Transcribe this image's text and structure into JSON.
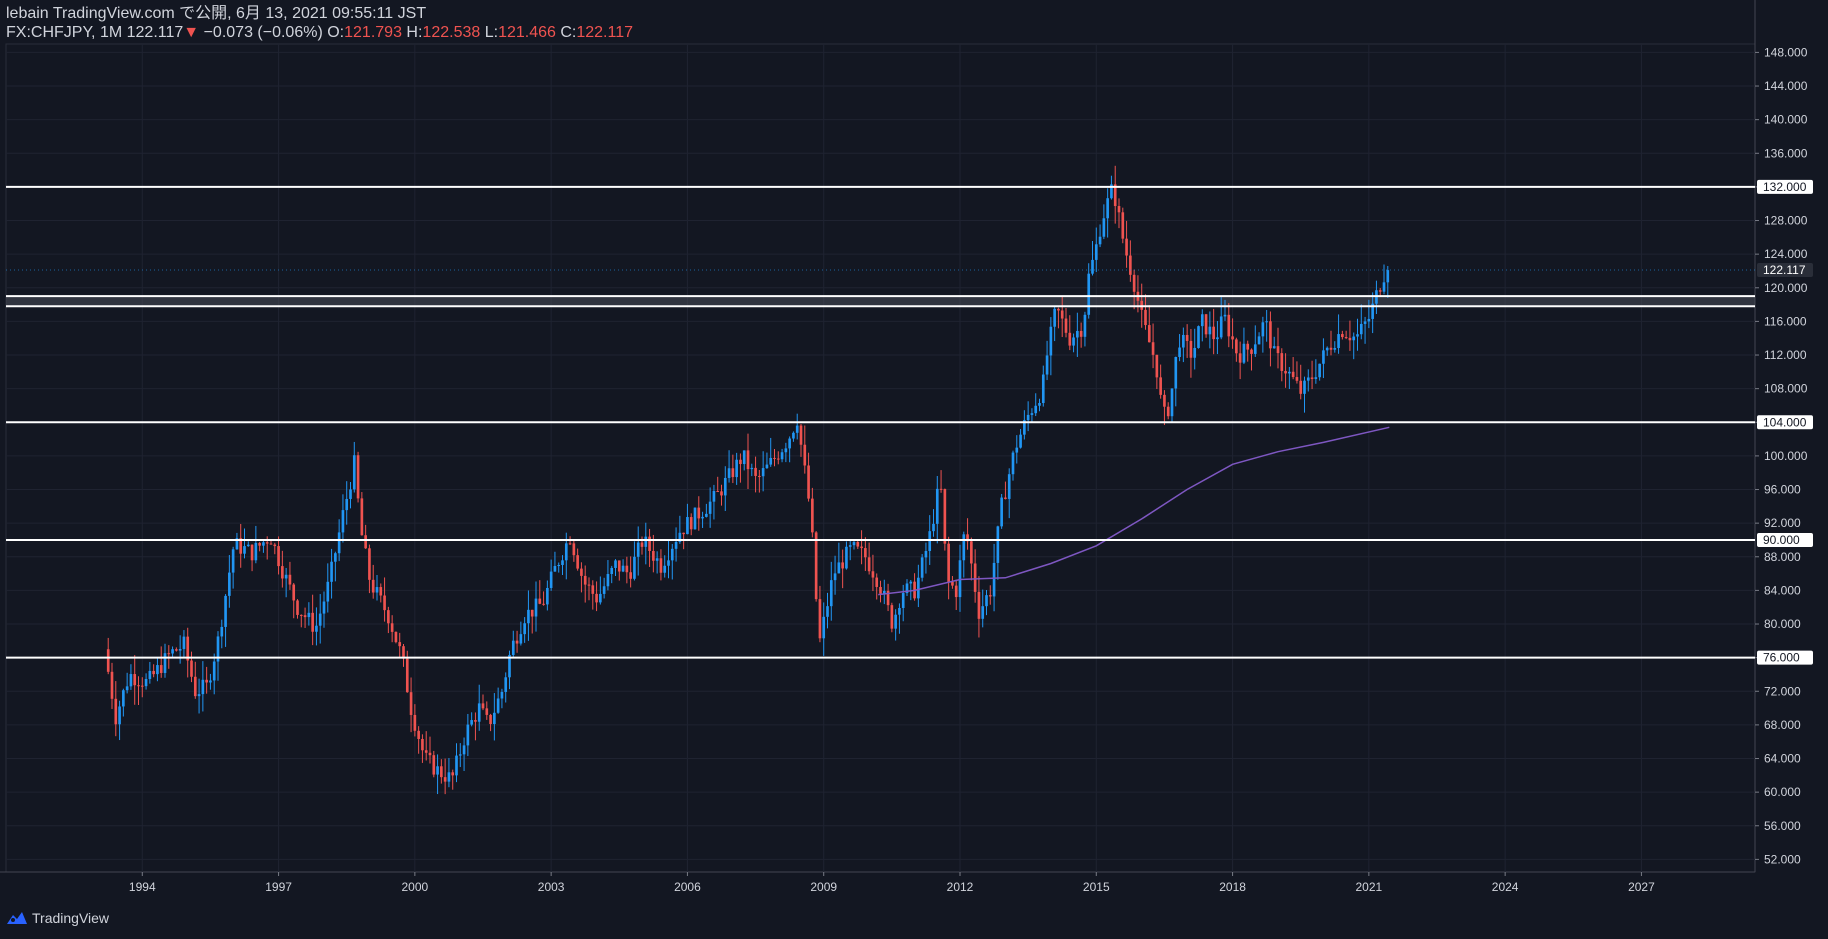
{
  "header": {
    "author_line": "lebain TradingView.com で公開, 6月 13, 2021 09:55:11 JST",
    "symbol": "FX:CHFJPY, 1M",
    "last": "122.117",
    "change_arrow": "▼",
    "change": "−0.073 (−0.06%)",
    "o_label": "O:",
    "o_value": "121.793",
    "h_label": "H:",
    "h_value": "122.538",
    "l_label": "L:",
    "l_value": "121.466",
    "c_label": "C:",
    "c_value": "122.117"
  },
  "footer": {
    "brand": "TradingView"
  },
  "colors": {
    "background": "#131722",
    "up": "#2196f3",
    "down": "#ef5350",
    "ma": "#7e57c2",
    "level": "#ffffff",
    "grid": "#1f2331",
    "axis_text": "#d1d4dc"
  },
  "chart_data": {
    "type": "candlestick",
    "title": "FX:CHFJPY, 1M",
    "ylim": [
      50.5,
      149
    ],
    "y_ticks": [
      "52.000",
      "56.000",
      "60.000",
      "64.000",
      "68.000",
      "72.000",
      "76.000",
      "80.000",
      "84.000",
      "88.000",
      "92.000",
      "96.000",
      "100.000",
      "104.000",
      "108.000",
      "112.000",
      "116.000",
      "120.000",
      "124.000",
      "128.000",
      "132.000",
      "136.000",
      "140.000",
      "144.000",
      "148.000"
    ],
    "x_ticks": [
      "1994",
      "1997",
      "2000",
      "2003",
      "2006",
      "2009",
      "2012",
      "2015",
      "2018",
      "2021",
      "2024",
      "2027"
    ],
    "xlim": [
      1991.0,
      2029.5
    ],
    "last_price_label": "122.117",
    "horizontal_levels": [
      {
        "value": 132,
        "label": "132.000"
      },
      {
        "value": 119,
        "label": ""
      },
      {
        "value": 117.8,
        "label": ""
      },
      {
        "value": 104,
        "label": "104.000"
      },
      {
        "value": 90,
        "label": "90.000"
      },
      {
        "value": 76,
        "label": "76.000"
      }
    ],
    "zone": [
      117.8,
      119
    ],
    "price_path": [
      [
        1993.25,
        77
      ],
      [
        1993.5,
        69
      ],
      [
        1993.8,
        74
      ],
      [
        1994.2,
        73
      ],
      [
        1994.7,
        76.5
      ],
      [
        1995.0,
        77.5
      ],
      [
        1995.25,
        72
      ],
      [
        1995.5,
        72.5
      ],
      [
        1995.75,
        78
      ],
      [
        1996.1,
        89.5
      ],
      [
        1996.5,
        88.5
      ],
      [
        1996.9,
        90.5
      ],
      [
        1997.2,
        86
      ],
      [
        1997.5,
        82
      ],
      [
        1997.9,
        79.5
      ],
      [
        1998.2,
        85
      ],
      [
        1998.5,
        93
      ],
      [
        1998.75,
        99
      ],
      [
        1998.9,
        91
      ],
      [
        1999.1,
        85
      ],
      [
        1999.5,
        81
      ],
      [
        1999.8,
        76
      ],
      [
        2000.0,
        70
      ],
      [
        2000.3,
        64
      ],
      [
        2000.6,
        62.5
      ],
      [
        2000.9,
        61.5
      ],
      [
        2001.2,
        67
      ],
      [
        2001.5,
        70
      ],
      [
        2001.7,
        68
      ],
      [
        2002.0,
        72
      ],
      [
        2002.2,
        77
      ],
      [
        2002.5,
        81
      ],
      [
        2002.9,
        82.5
      ],
      [
        2003.2,
        87
      ],
      [
        2003.5,
        90.5
      ],
      [
        2003.8,
        85
      ],
      [
        2004.1,
        83
      ],
      [
        2004.5,
        87
      ],
      [
        2004.8,
        86
      ],
      [
        2005.1,
        90
      ],
      [
        2005.5,
        87
      ],
      [
        2005.9,
        91
      ],
      [
        2006.3,
        93
      ],
      [
        2006.7,
        95
      ],
      [
        2007.0,
        97.5
      ],
      [
        2007.3,
        100
      ],
      [
        2007.6,
        97
      ],
      [
        2007.9,
        99
      ],
      [
        2008.3,
        102
      ],
      [
        2008.5,
        104.5
      ],
      [
        2008.8,
        93
      ],
      [
        2008.9,
        84
      ],
      [
        2009.0,
        78
      ],
      [
        2009.3,
        86
      ],
      [
        2009.7,
        89
      ],
      [
        2010.0,
        88
      ],
      [
        2010.3,
        85
      ],
      [
        2010.6,
        80
      ],
      [
        2010.8,
        84
      ],
      [
        2011.1,
        84
      ],
      [
        2011.4,
        90
      ],
      [
        2011.65,
        97
      ],
      [
        2011.8,
        85
      ],
      [
        2012.0,
        84
      ],
      [
        2012.2,
        91.5
      ],
      [
        2012.5,
        81.5
      ],
      [
        2012.75,
        84
      ],
      [
        2013.0,
        94
      ],
      [
        2013.3,
        101
      ],
      [
        2013.6,
        105
      ],
      [
        2013.9,
        108
      ],
      [
        2014.0,
        112
      ],
      [
        2014.2,
        117.5
      ],
      [
        2014.5,
        114
      ],
      [
        2014.8,
        115.5
      ],
      [
        2014.9,
        121
      ],
      [
        2015.05,
        124
      ],
      [
        2015.2,
        128
      ],
      [
        2015.45,
        132
      ],
      [
        2015.7,
        125
      ],
      [
        2015.9,
        121
      ],
      [
        2016.1,
        116
      ],
      [
        2016.4,
        111
      ],
      [
        2016.55,
        104.5
      ],
      [
        2016.7,
        106
      ],
      [
        2016.9,
        114
      ],
      [
        2017.2,
        112
      ],
      [
        2017.4,
        116
      ],
      [
        2017.7,
        114
      ],
      [
        2017.9,
        116.5
      ],
      [
        2018.2,
        112
      ],
      [
        2018.5,
        113
      ],
      [
        2018.8,
        116
      ],
      [
        2019.0,
        112
      ],
      [
        2019.3,
        110
      ],
      [
        2019.6,
        107.5
      ],
      [
        2019.9,
        110
      ],
      [
        2020.2,
        113
      ],
      [
        2020.5,
        115
      ],
      [
        2020.8,
        114
      ],
      [
        2021.1,
        116.5
      ],
      [
        2021.3,
        120
      ],
      [
        2021.45,
        122.1
      ]
    ],
    "ma_path": [
      [
        2010.2,
        83.5
      ],
      [
        2011.0,
        84
      ],
      [
        2012.0,
        85.3
      ],
      [
        2013.0,
        85.5
      ],
      [
        2014.0,
        87.2
      ],
      [
        2015.0,
        89.3
      ],
      [
        2016.0,
        92.5
      ],
      [
        2017.0,
        96
      ],
      [
        2018.0,
        99
      ],
      [
        2019.0,
        100.5
      ],
      [
        2020.0,
        101.6
      ],
      [
        2021.45,
        103.4
      ]
    ]
  }
}
